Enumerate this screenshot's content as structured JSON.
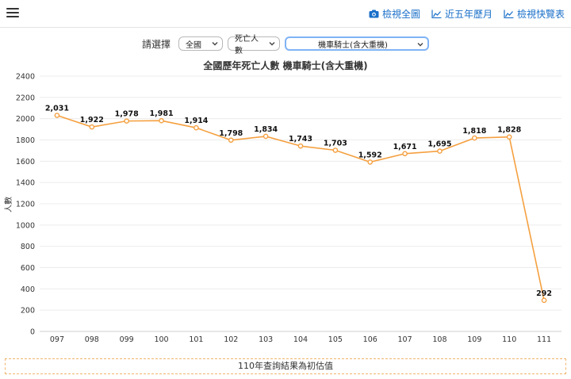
{
  "header": {
    "nav": [
      {
        "label": "檢視全圖",
        "icon": "camera-icon"
      },
      {
        "label": "近五年歷月",
        "icon": "area-chart-icon"
      },
      {
        "label": "檢視快覽表",
        "icon": "area-chart-icon"
      }
    ]
  },
  "selectors": {
    "label": "請選擇",
    "region": "全國",
    "metric": "死亡人數",
    "vehicle": "機車騎士(含大重機)"
  },
  "colors": {
    "accent": "#1a6fc9",
    "line": "#f5a040",
    "note_border": "#f0b56c"
  },
  "chart_data": {
    "type": "line",
    "title": "全國歷年死亡人數 機車騎士(含大重機)",
    "ylabel": "人數",
    "xlabel": "",
    "categories": [
      "097",
      "098",
      "099",
      "100",
      "101",
      "102",
      "103",
      "104",
      "105",
      "106",
      "107",
      "108",
      "109",
      "110",
      "111"
    ],
    "values": [
      2031,
      1922,
      1978,
      1981,
      1914,
      1798,
      1834,
      1743,
      1703,
      1592,
      1671,
      1695,
      1818,
      1828,
      292
    ],
    "data_labels": [
      "2,031",
      "1,922",
      "1,978",
      "1,981",
      "1,914",
      "1,798",
      "1,834",
      "1,743",
      "1,703",
      "1,592",
      "1,671",
      "1,695",
      "1,818",
      "1,828",
      "292"
    ],
    "ylim": [
      0,
      2400
    ],
    "yticks": [
      0,
      200,
      400,
      600,
      800,
      1000,
      1200,
      1400,
      1600,
      1800,
      2000,
      2200,
      2400
    ],
    "grid": true,
    "legend": "none"
  },
  "note": "110年查詢結果為初估值"
}
